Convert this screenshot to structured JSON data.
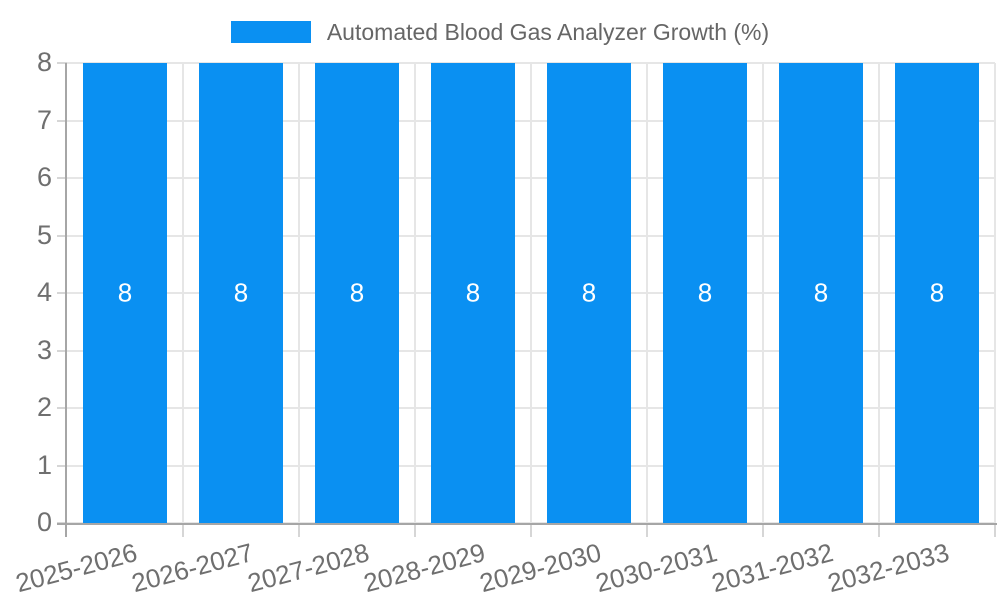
{
  "legend": {
    "label": "Automated Blood Gas Analyzer Growth (%)"
  },
  "chart_data": {
    "type": "bar",
    "title": "Automated Blood Gas Analyzer Growth (%)",
    "series_name": "Automated Blood Gas Analyzer Growth (%)",
    "categories": [
      "2025-2026",
      "2026-2027",
      "2027-2028",
      "2028-2029",
      "2029-2030",
      "2030-2031",
      "2031-2032",
      "2032-2033"
    ],
    "values": [
      8,
      8,
      8,
      8,
      8,
      8,
      8,
      8
    ],
    "value_labels": [
      "8",
      "8",
      "8",
      "8",
      "8",
      "8",
      "8",
      "8"
    ],
    "xlabel": "",
    "ylabel": "",
    "ylim": [
      0,
      8
    ],
    "yticks": [
      0,
      1,
      2,
      3,
      4,
      5,
      6,
      7,
      8
    ],
    "grid": true,
    "legend_position": "top",
    "x_label_rotation_deg": -15,
    "colors": {
      "bar": "#0a90f2",
      "value_label": "#ffffff",
      "grid_line": "#e6e6e6",
      "tick_mark": "#d6d6d6",
      "axis_line": "#a6a6a6",
      "tick_text": "#6f6f6f",
      "legend_text": "#666666",
      "background": "#ffffff"
    }
  }
}
